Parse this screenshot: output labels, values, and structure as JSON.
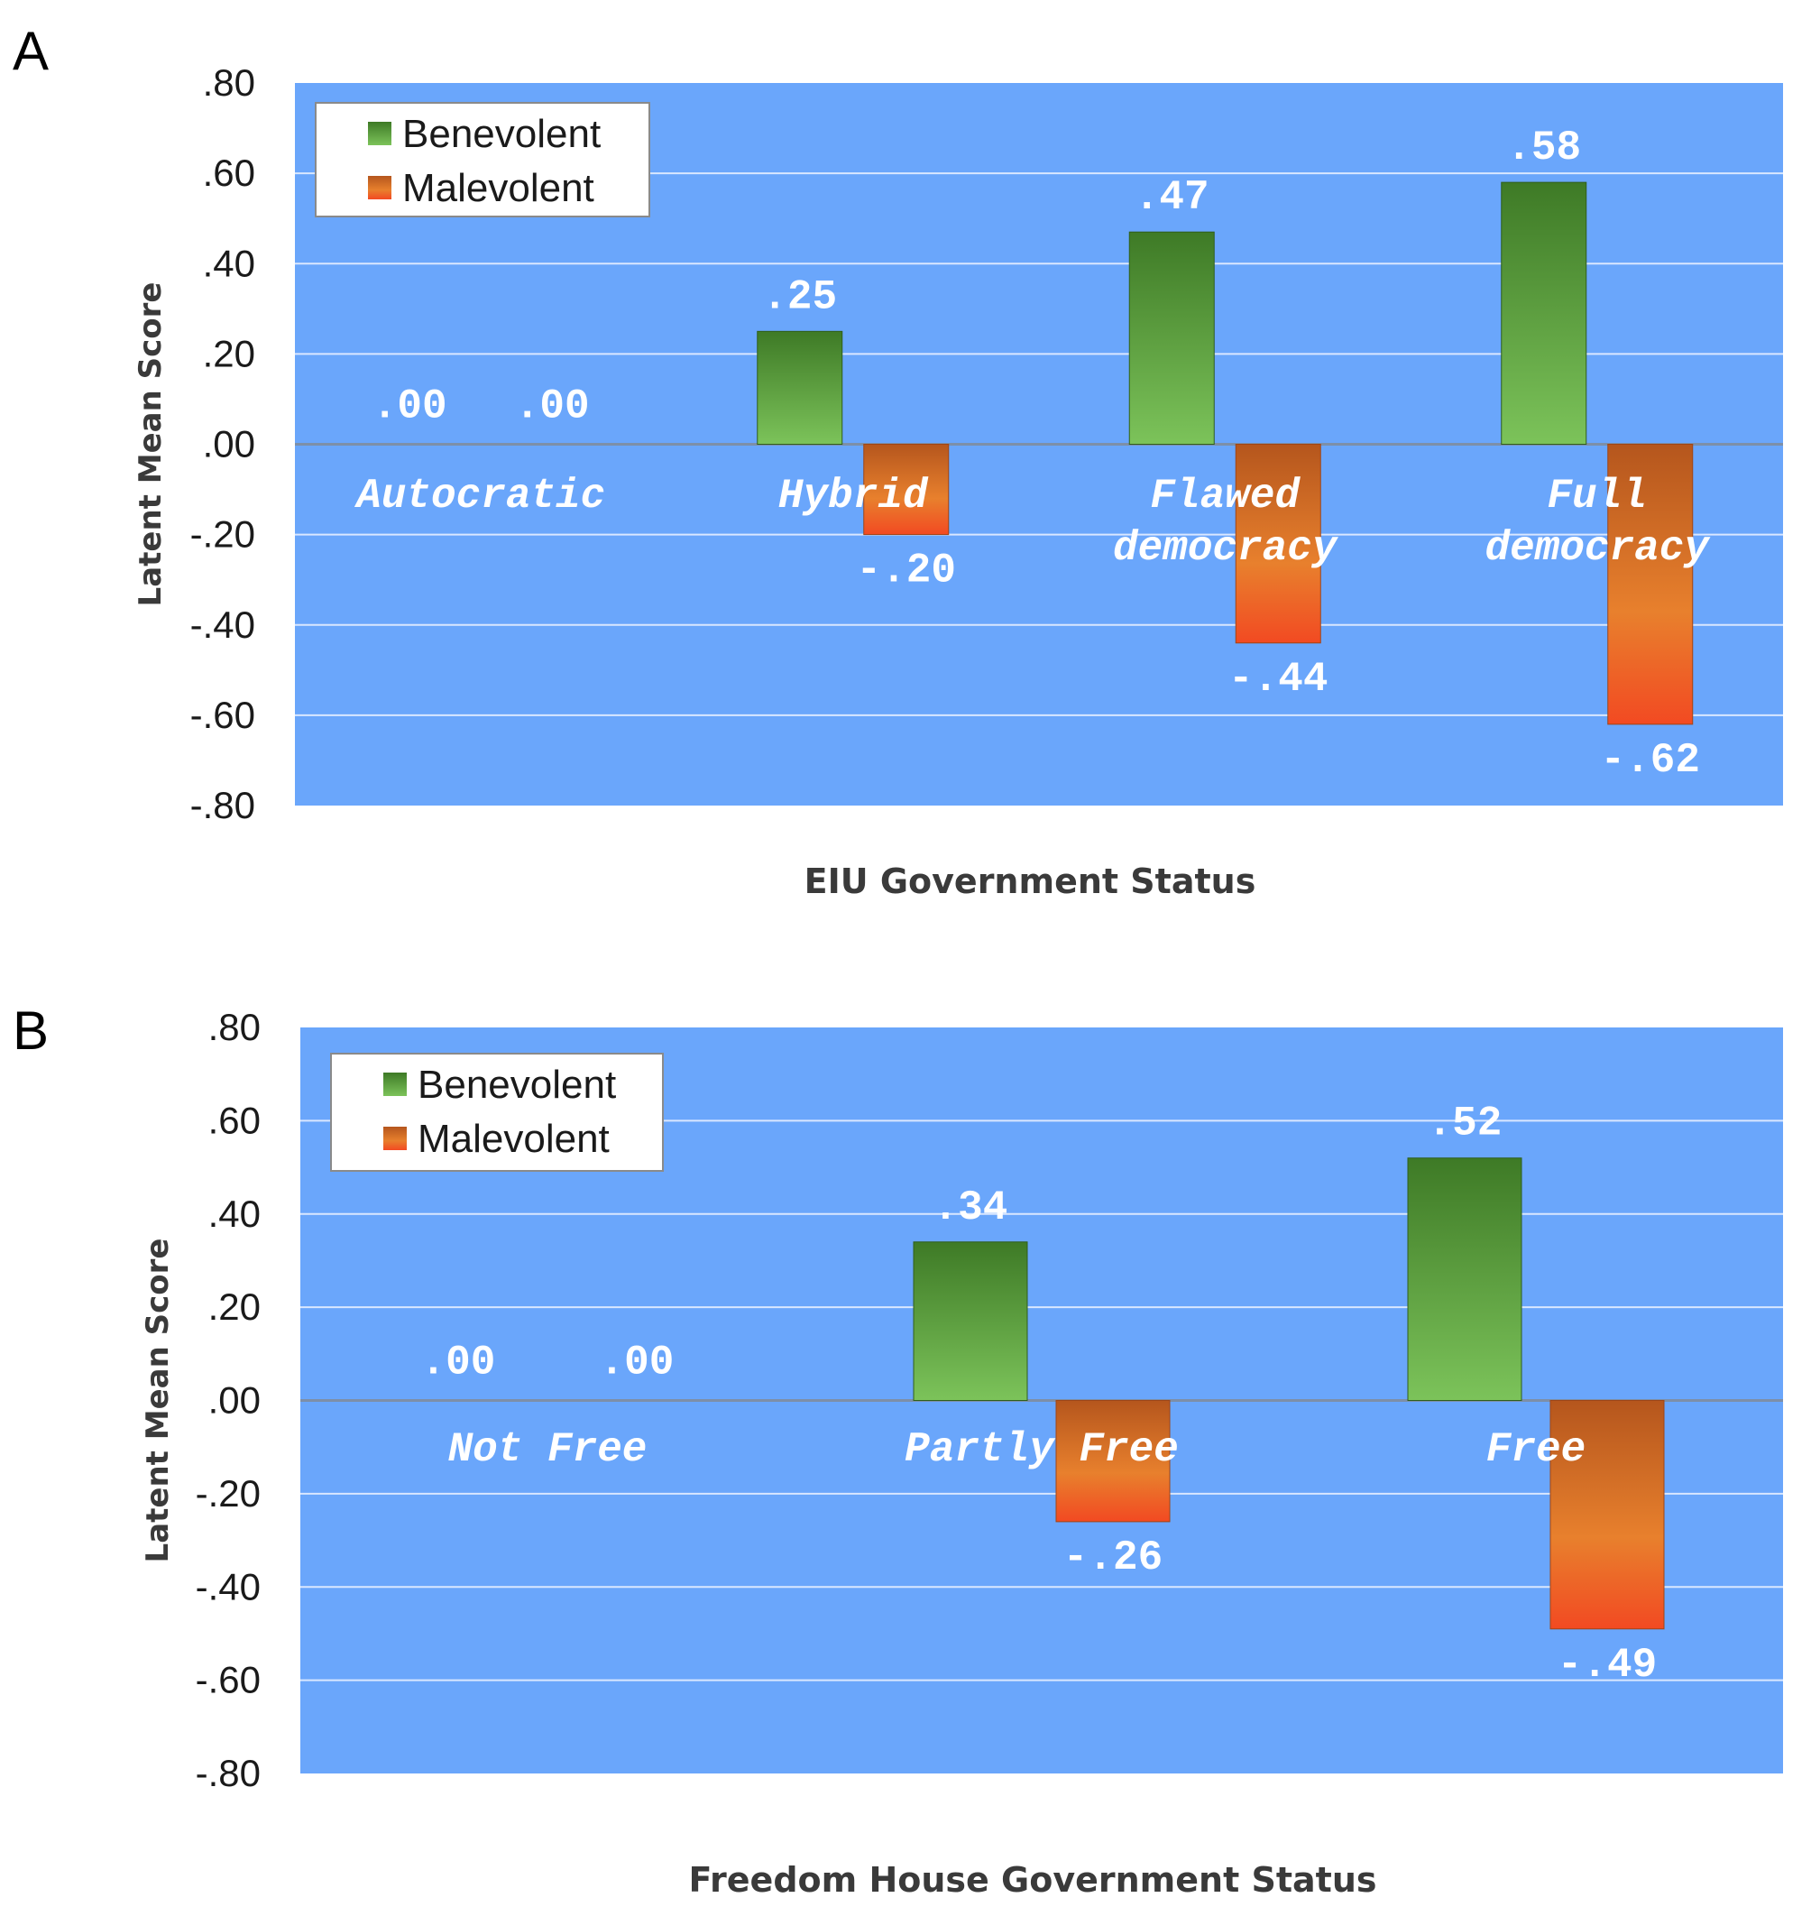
{
  "colors": {
    "plot_bg": "#6aa6fb",
    "grid": "#d9e7ff",
    "benevolent": "#4a8f2e",
    "malevolent": "#e8702a"
  },
  "chart_data": [
    {
      "panel": "A",
      "type": "bar",
      "ylabel": "Latent Mean Score",
      "xlabel": "EIU Government Status",
      "ylim": [
        -0.8,
        0.8
      ],
      "yticks": [
        ".80",
        ".60",
        ".40",
        ".20",
        ".00",
        "-.20",
        "-.40",
        "-.60",
        "-.80"
      ],
      "categories": [
        [
          "Autocratic"
        ],
        [
          "Hybrid"
        ],
        [
          "Flawed",
          "democracy"
        ],
        [
          "Full",
          "democracy"
        ]
      ],
      "legend": {
        "position": "top-left"
      },
      "grid": true,
      "series": [
        {
          "name": "Benevolent",
          "values": [
            0.0,
            0.25,
            0.47,
            0.58
          ],
          "labels": [
            ".00",
            ".25",
            ".47",
            ".58"
          ]
        },
        {
          "name": "Malevolent",
          "values": [
            0.0,
            -0.2,
            -0.44,
            -0.62
          ],
          "labels": [
            ".00",
            "-.20",
            "-.44",
            "-.62"
          ]
        }
      ]
    },
    {
      "panel": "B",
      "type": "bar",
      "ylabel": "Latent Mean Score",
      "xlabel": "Freedom House Government Status",
      "ylim": [
        -0.8,
        0.8
      ],
      "yticks": [
        ".80",
        ".60",
        ".40",
        ".20",
        ".00",
        "-.20",
        "-.40",
        "-.60",
        "-.80"
      ],
      "categories": [
        [
          "Not  Free"
        ],
        [
          "Partly Free"
        ],
        [
          "Free"
        ]
      ],
      "legend": {
        "position": "top-left"
      },
      "grid": true,
      "series": [
        {
          "name": "Benevolent",
          "values": [
            0.0,
            0.34,
            0.52
          ],
          "labels": [
            ".00",
            ".34",
            ".52"
          ]
        },
        {
          "name": "Malevolent",
          "values": [
            0.0,
            -0.26,
            -0.49
          ],
          "labels": [
            ".00",
            "-.26",
            "-.49"
          ]
        }
      ]
    }
  ]
}
